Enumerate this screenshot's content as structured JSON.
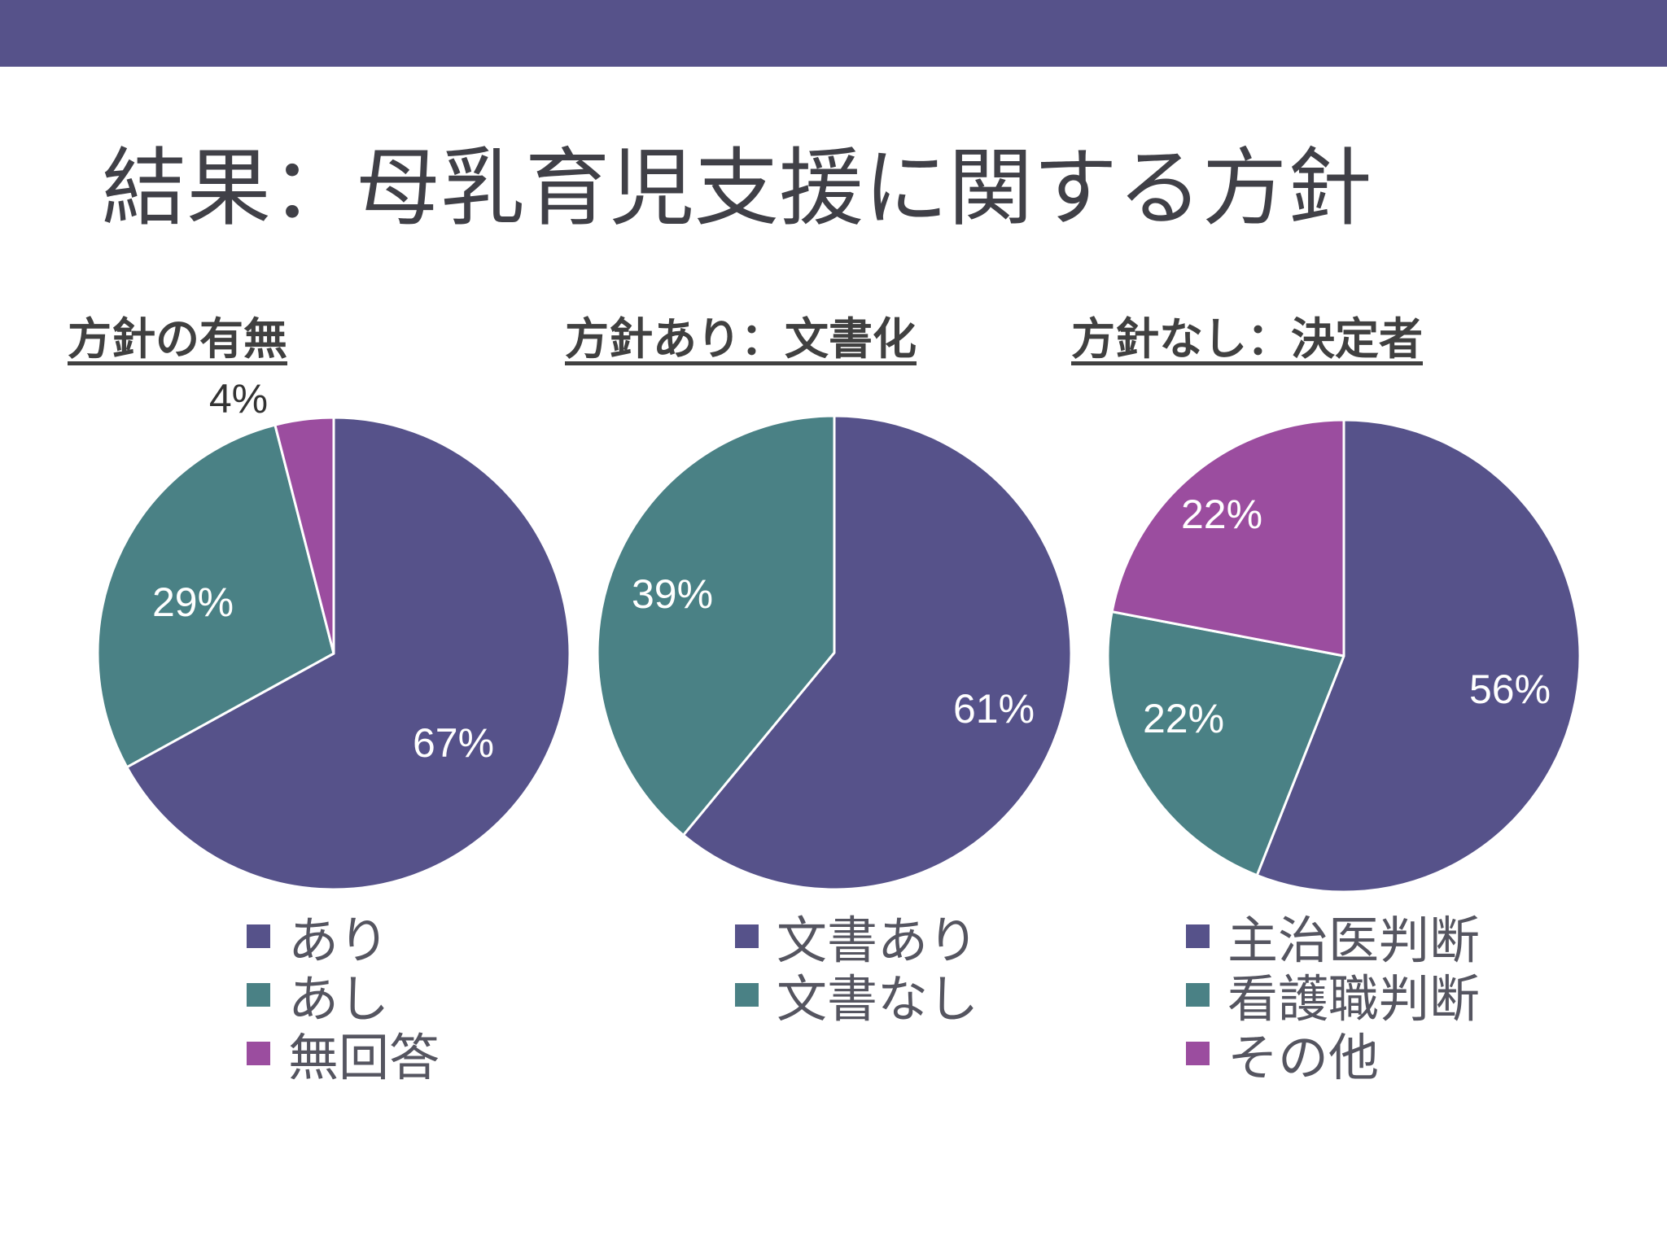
{
  "colors": {
    "top_bar": "#56528a",
    "title_text": "#404047",
    "heading_text": "#404040",
    "legend_text": "#555560",
    "slice_border": "#ffffff"
  },
  "slide": {
    "title": "結果：母乳育児支援に関する方針"
  },
  "chart_data": [
    {
      "type": "pie",
      "title": "方針の有無",
      "categories": [
        "あり",
        "あし",
        "無回答"
      ],
      "values": [
        67,
        29,
        4
      ],
      "data_labels": [
        "67%",
        "29%",
        "4%"
      ],
      "colors": [
        "#56528a",
        "#4a8185",
        "#9b4d9f"
      ],
      "legend_position": "bottom"
    },
    {
      "type": "pie",
      "title": "方針あり：文書化",
      "categories": [
        "文書あり",
        "文書なし"
      ],
      "values": [
        61,
        39
      ],
      "data_labels": [
        "61%",
        "39%"
      ],
      "colors": [
        "#56528a",
        "#4a8185"
      ],
      "legend_position": "bottom"
    },
    {
      "type": "pie",
      "title": "方針なし：決定者",
      "categories": [
        "主治医判断",
        "看護職判断",
        "その他"
      ],
      "values": [
        56,
        22,
        22
      ],
      "data_labels": [
        "56%",
        "22%",
        "22%"
      ],
      "colors": [
        "#56528a",
        "#4a8185",
        "#9b4d9f"
      ],
      "legend_position": "bottom"
    }
  ]
}
